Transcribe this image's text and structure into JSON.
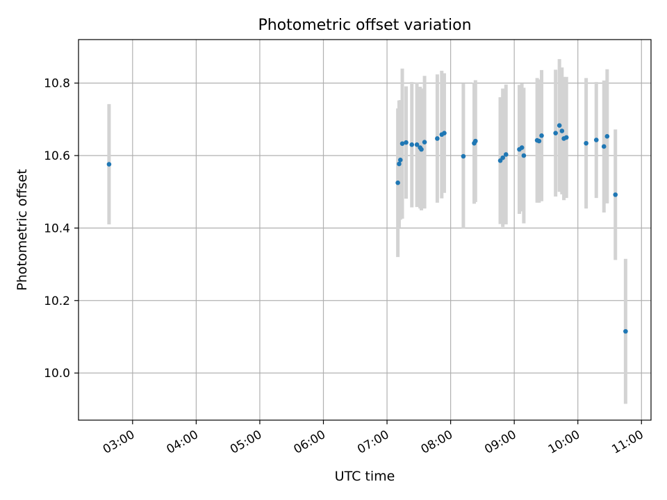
{
  "chart_data": {
    "type": "scatter",
    "title": "Photometric offset variation",
    "xlabel": "UTC time",
    "ylabel": "Photometric offset",
    "x_unit": "UTC hour",
    "xlim": [
      2.15,
      11.15
    ],
    "ylim": [
      9.87,
      10.92
    ],
    "x_ticks": [
      {
        "value": 3,
        "label": "03:00"
      },
      {
        "value": 4,
        "label": "04:00"
      },
      {
        "value": 5,
        "label": "05:00"
      },
      {
        "value": 6,
        "label": "06:00"
      },
      {
        "value": 7,
        "label": "07:00"
      },
      {
        "value": 8,
        "label": "08:00"
      },
      {
        "value": 9,
        "label": "09:00"
      },
      {
        "value": 10,
        "label": "10:00"
      },
      {
        "value": 11,
        "label": "11:00"
      }
    ],
    "y_ticks": [
      {
        "value": 10.0,
        "label": "10.0"
      },
      {
        "value": 10.2,
        "label": "10.2"
      },
      {
        "value": 10.4,
        "label": "10.4"
      },
      {
        "value": 10.6,
        "label": "10.6"
      },
      {
        "value": 10.8,
        "label": "10.8"
      }
    ],
    "grid": true,
    "marker_color": "#1f77b4",
    "errorbar_color": "#d3d3d3",
    "points": [
      {
        "x": 2.63,
        "y": 10.576,
        "err": 0.166
      },
      {
        "x": 7.17,
        "y": 10.525,
        "err": 0.205
      },
      {
        "x": 7.19,
        "y": 10.577,
        "err": 0.175
      },
      {
        "x": 7.21,
        "y": 10.588,
        "err": 0.165
      },
      {
        "x": 7.24,
        "y": 10.633,
        "err": 0.207
      },
      {
        "x": 7.3,
        "y": 10.636,
        "err": 0.155
      },
      {
        "x": 7.39,
        "y": 10.63,
        "err": 0.173
      },
      {
        "x": 7.47,
        "y": 10.63,
        "err": 0.172
      },
      {
        "x": 7.52,
        "y": 10.622,
        "err": 0.168
      },
      {
        "x": 7.54,
        "y": 10.617,
        "err": 0.168
      },
      {
        "x": 7.59,
        "y": 10.637,
        "err": 0.183
      },
      {
        "x": 7.79,
        "y": 10.647,
        "err": 0.177
      },
      {
        "x": 7.86,
        "y": 10.658,
        "err": 0.176
      },
      {
        "x": 7.9,
        "y": 10.662,
        "err": 0.165
      },
      {
        "x": 8.2,
        "y": 10.598,
        "err": 0.2
      },
      {
        "x": 8.37,
        "y": 10.634,
        "err": 0.167
      },
      {
        "x": 8.39,
        "y": 10.64,
        "err": 0.168
      },
      {
        "x": 8.78,
        "y": 10.586,
        "err": 0.175
      },
      {
        "x": 8.82,
        "y": 10.594,
        "err": 0.191
      },
      {
        "x": 8.87,
        "y": 10.603,
        "err": 0.193
      },
      {
        "x": 9.08,
        "y": 10.617,
        "err": 0.178
      },
      {
        "x": 9.12,
        "y": 10.622,
        "err": 0.176
      },
      {
        "x": 9.15,
        "y": 10.6,
        "err": 0.187
      },
      {
        "x": 9.36,
        "y": 10.642,
        "err": 0.172
      },
      {
        "x": 9.39,
        "y": 10.64,
        "err": 0.17
      },
      {
        "x": 9.43,
        "y": 10.655,
        "err": 0.181
      },
      {
        "x": 9.65,
        "y": 10.662,
        "err": 0.175
      },
      {
        "x": 9.71,
        "y": 10.683,
        "err": 0.183
      },
      {
        "x": 9.75,
        "y": 10.668,
        "err": 0.175
      },
      {
        "x": 9.78,
        "y": 10.647,
        "err": 0.17
      },
      {
        "x": 9.82,
        "y": 10.65,
        "err": 0.167
      },
      {
        "x": 10.13,
        "y": 10.634,
        "err": 0.18
      },
      {
        "x": 10.29,
        "y": 10.643,
        "err": 0.16
      },
      {
        "x": 10.41,
        "y": 10.625,
        "err": 0.182
      },
      {
        "x": 10.46,
        "y": 10.653,
        "err": 0.185
      },
      {
        "x": 10.59,
        "y": 10.492,
        "err": 0.18
      },
      {
        "x": 10.75,
        "y": 10.115,
        "err": 0.2
      }
    ]
  }
}
